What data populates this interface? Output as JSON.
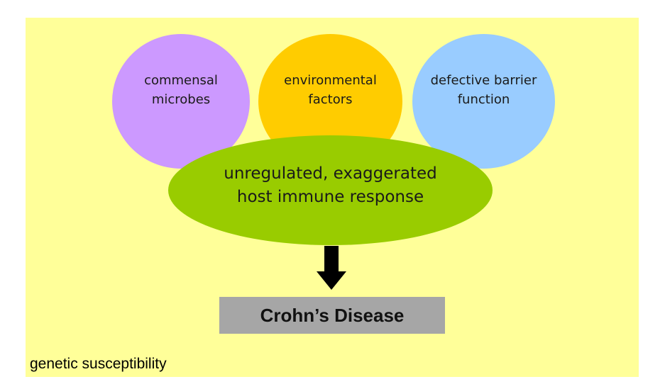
{
  "background_label": "genetic susceptibility",
  "factors": [
    {
      "line1": "commensal",
      "line2": "microbes",
      "color": "#cc99ff"
    },
    {
      "line1": "environmental",
      "line2": "factors",
      "color": "#ffcc00"
    },
    {
      "line1": "defective barrier",
      "line2": "function",
      "color": "#99ccff"
    }
  ],
  "immune_response": {
    "line1": "unregulated, exaggerated",
    "line2": "host immune response",
    "color": "#99cc00"
  },
  "outcome": "Crohn’s Disease",
  "colors": {
    "panel": "#ffff99",
    "outcome_box": "#a6a6a6",
    "arrow": "#000000"
  },
  "icons": {
    "arrow": "down-arrow-icon"
  }
}
